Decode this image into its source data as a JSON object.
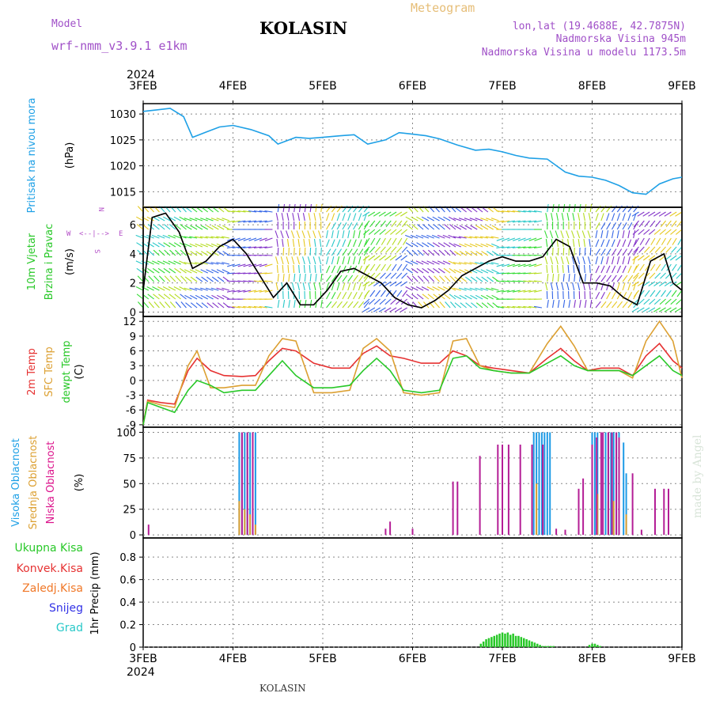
{
  "header": {
    "model_label": "Model",
    "model_name": "wrf-nmm_v3.9.1 e1km",
    "meteogram_label": "Meteogram",
    "station_title": "KOLASIN",
    "coords": "lon,lat (19.4688E, 42.7875N)",
    "altitude": "Nadmorska Visina 945m",
    "model_altitude": "Nadmorska Visina u modelu 1173.5m",
    "year": "2024",
    "footer_station": "KOLASIN",
    "credit": "made by Angel"
  },
  "colors": {
    "pressure": "#1ea0e6",
    "wind_speed": "#000000",
    "temp_2m": "#e63232",
    "sfc_temp": "#dca032",
    "dewpt": "#28c828",
    "cloud_high": "#1e9be6",
    "cloud_mid": "#dca032",
    "cloud_low": "#b41e96",
    "precip_total": "#28c828"
  },
  "panels": {
    "pressure": {
      "labels": [
        "Pritisak na nivou mora"
      ],
      "unit": "(hPa)",
      "label_colors": [
        "#1ea0e6"
      ]
    },
    "wind": {
      "labels": [
        "10m Vjetar",
        "Brzina i Pravac"
      ],
      "unit": "(m/s)",
      "label_colors": [
        "#28c828",
        "#28c828"
      ],
      "compass": {
        "N": "N",
        "W": "W",
        "E": "E",
        "S": "S",
        "arrows": "<--|-->"
      }
    },
    "temp": {
      "labels": [
        "2m Temp",
        "SFC Temp",
        "dewpt Temp"
      ],
      "unit": "(C)",
      "label_colors": [
        "#e63232",
        "#dca032",
        "#28c828"
      ]
    },
    "cloud": {
      "labels": [
        "Visoka Oblacnost",
        "Srednja Oblacnost",
        "Niska Oblacnost"
      ],
      "unit": "(%)",
      "label_colors": [
        "#1ea0e6",
        "#dca032",
        "#dc148c"
      ]
    },
    "precip": {
      "labels": [
        "Ukupna Kisa",
        "Konvek.Kisa",
        "Zaledj.Kisa",
        "Snijeg",
        "Grad"
      ],
      "label_colors": [
        "#28c828",
        "#e63232",
        "#f07828",
        "#3232e6",
        "#28c8c8"
      ],
      "unit": "1hr Precip (mm)"
    }
  },
  "chart_data": [
    {
      "type": "line",
      "panel": "pressure",
      "x_ticks": [
        "3FEB",
        "4FEB",
        "5FEB",
        "6FEB",
        "7FEB",
        "8FEB",
        "9FEB"
      ],
      "ylabel": "(hPa)",
      "y_ticks": [
        1015,
        1020,
        1025,
        1030
      ],
      "ylim": [
        1012,
        1032
      ],
      "grid": true,
      "series": [
        {
          "name": "Pritisak na nivou mora",
          "x": [
            0,
            0.15,
            0.3,
            0.45,
            0.55,
            0.7,
            0.85,
            1.0,
            1.2,
            1.4,
            1.5,
            1.7,
            1.85,
            2.0,
            2.2,
            2.35,
            2.5,
            2.7,
            2.85,
            3.0,
            3.15,
            3.3,
            3.5,
            3.7,
            3.85,
            4.0,
            4.15,
            4.3,
            4.5,
            4.7,
            4.85,
            5.0,
            5.15,
            5.3,
            5.45,
            5.6,
            5.75,
            5.9,
            6.0
          ],
          "y": [
            1030.5,
            1030.8,
            1031.1,
            1029.5,
            1025.5,
            1026.5,
            1027.5,
            1027.8,
            1027.0,
            1025.8,
            1024.2,
            1025.5,
            1025.3,
            1025.5,
            1025.8,
            1026.0,
            1024.2,
            1025.0,
            1026.4,
            1026.1,
            1025.8,
            1025.2,
            1024.0,
            1023.0,
            1023.2,
            1022.7,
            1022.0,
            1021.5,
            1021.3,
            1018.8,
            1018.0,
            1017.8,
            1017.2,
            1016.2,
            1014.8,
            1014.5,
            1016.5,
            1017.5,
            1017.8
          ]
        }
      ]
    },
    {
      "type": "line",
      "panel": "wind",
      "ylabel": "(m/s)",
      "y_ticks": [
        0,
        2,
        4,
        6
      ],
      "ylim": [
        -0.3,
        7.2
      ],
      "grid": true,
      "series": [
        {
          "name": "wind speed",
          "x": [
            0,
            0.1,
            0.25,
            0.4,
            0.55,
            0.7,
            0.85,
            1.0,
            1.15,
            1.3,
            1.45,
            1.6,
            1.75,
            1.9,
            2.05,
            2.2,
            2.35,
            2.5,
            2.65,
            2.8,
            2.95,
            3.1,
            3.25,
            3.4,
            3.55,
            3.7,
            3.85,
            4.0,
            4.15,
            4.3,
            4.45,
            4.6,
            4.75,
            4.9,
            5.05,
            5.2,
            5.35,
            5.5,
            5.65,
            5.8,
            5.9,
            6.0
          ],
          "y": [
            1.5,
            6.5,
            6.8,
            5.5,
            3.0,
            3.5,
            4.5,
            5.0,
            4.0,
            2.5,
            1.0,
            2.0,
            0.5,
            0.5,
            1.5,
            2.8,
            3.0,
            2.5,
            2.0,
            1.0,
            0.5,
            0.3,
            0.8,
            1.5,
            2.5,
            3.0,
            3.5,
            3.8,
            3.5,
            3.5,
            3.8,
            5.0,
            4.5,
            2.0,
            2.0,
            1.8,
            1.0,
            0.5,
            3.5,
            4.0,
            2.0,
            1.5
          ]
        }
      ]
    },
    {
      "type": "line",
      "panel": "temp",
      "ylabel": "(C)",
      "y_ticks": [
        -9,
        -6,
        -3,
        0,
        3,
        6,
        9,
        12
      ],
      "ylim": [
        -9.5,
        13
      ],
      "grid": true,
      "series": [
        {
          "name": "2m Temp",
          "x": [
            0,
            0.05,
            0.2,
            0.35,
            0.5,
            0.6,
            0.75,
            0.9,
            1.1,
            1.25,
            1.4,
            1.55,
            1.7,
            1.9,
            2.1,
            2.3,
            2.45,
            2.6,
            2.75,
            2.9,
            3.1,
            3.3,
            3.45,
            3.6,
            3.75,
            3.9,
            4.1,
            4.3,
            4.5,
            4.65,
            4.8,
            4.95,
            5.1,
            5.3,
            5.45,
            5.6,
            5.75,
            5.9,
            6.0
          ],
          "y": [
            -9,
            -4.0,
            -4.5,
            -4.8,
            2.0,
            4.5,
            2.0,
            1.0,
            0.8,
            1.0,
            4.0,
            6.5,
            6.0,
            3.5,
            2.5,
            2.5,
            5.5,
            7.0,
            5.0,
            4.5,
            3.5,
            3.5,
            6.0,
            5.0,
            3.0,
            2.5,
            2.0,
            1.5,
            4.5,
            6.5,
            4.0,
            2.0,
            2.5,
            2.5,
            1.0,
            5.0,
            7.5,
            4.0,
            2.5
          ]
        },
        {
          "name": "SFC Temp",
          "x": [
            0,
            0.05,
            0.2,
            0.35,
            0.5,
            0.6,
            0.75,
            0.9,
            1.1,
            1.25,
            1.4,
            1.55,
            1.7,
            1.9,
            2.1,
            2.3,
            2.45,
            2.6,
            2.75,
            2.9,
            3.1,
            3.3,
            3.45,
            3.6,
            3.75,
            3.9,
            4.1,
            4.3,
            4.5,
            4.65,
            4.8,
            4.95,
            5.1,
            5.3,
            5.45,
            5.6,
            5.75,
            5.9,
            6.0
          ],
          "y": [
            -9,
            -4.2,
            -5.0,
            -5.5,
            3.0,
            6.0,
            -1.5,
            -1.5,
            -1.0,
            -1.0,
            5.0,
            8.5,
            8.0,
            -2.5,
            -2.5,
            -2.0,
            6.5,
            8.5,
            6.0,
            -2.5,
            -3.0,
            -2.5,
            8.0,
            8.5,
            3.0,
            2.0,
            1.5,
            1.5,
            7.5,
            11.0,
            7.0,
            2.0,
            2.0,
            2.0,
            0.5,
            8.0,
            12.0,
            8.0,
            0.5
          ]
        },
        {
          "name": "dewpt Temp",
          "x": [
            0,
            0.05,
            0.2,
            0.35,
            0.5,
            0.6,
            0.75,
            0.9,
            1.1,
            1.25,
            1.4,
            1.55,
            1.7,
            1.9,
            2.1,
            2.3,
            2.45,
            2.6,
            2.75,
            2.9,
            3.1,
            3.3,
            3.45,
            3.6,
            3.75,
            3.9,
            4.1,
            4.3,
            4.5,
            4.65,
            4.8,
            4.95,
            5.1,
            5.3,
            5.45,
            5.6,
            5.75,
            5.9,
            6.0
          ],
          "y": [
            -9,
            -4.5,
            -5.5,
            -6.5,
            -2.0,
            0.0,
            -1.0,
            -2.5,
            -2.0,
            -2.0,
            1.0,
            4.0,
            1.0,
            -1.5,
            -1.5,
            -1.0,
            2.0,
            4.5,
            2.0,
            -2.0,
            -2.5,
            -2.0,
            4.5,
            5.0,
            2.5,
            2.0,
            1.5,
            1.5,
            3.5,
            5.0,
            3.0,
            2.0,
            2.0,
            2.0,
            1.0,
            3.0,
            5.0,
            2.0,
            1.0
          ]
        }
      ]
    },
    {
      "type": "bar",
      "panel": "cloud",
      "ylabel": "(%)",
      "y_ticks": [
        0,
        25,
        50,
        75,
        100
      ],
      "ylim": [
        -3,
        105
      ],
      "grid": true,
      "series": [
        {
          "name": "Visoka Oblacnost",
          "x": [
            1.07,
            1.1,
            1.13,
            1.16,
            1.19,
            1.22,
            1.25,
            4.35,
            4.38,
            4.41,
            4.44,
            4.47,
            4.5,
            4.53,
            5.85,
            5.88,
            5.91,
            5.94,
            5.97,
            6.0,
            5.0,
            5.03,
            5.06,
            5.15,
            5.18,
            5.21,
            5.24,
            5.27,
            5.3,
            5.35,
            5.38
          ],
          "y": [
            100,
            100,
            100,
            100,
            100,
            100,
            100,
            100,
            100,
            100,
            100,
            100,
            100,
            100,
            0,
            0,
            0,
            0,
            0,
            0,
            100,
            100,
            100,
            100,
            100,
            100,
            100,
            100,
            100,
            90,
            60
          ]
        },
        {
          "name": "Srednja Oblacnost",
          "x": [
            1.07,
            1.13,
            1.19,
            1.25,
            4.38,
            5.0,
            5.06,
            5.18,
            5.24,
            5.3,
            5.38
          ],
          "y": [
            33,
            25,
            20,
            10,
            50,
            35,
            40,
            33,
            33,
            30,
            20
          ]
        },
        {
          "name": "Niska Oblacnost",
          "x": [
            0.06,
            1.1,
            1.16,
            1.22,
            2.7,
            2.75,
            3.0,
            3.45,
            3.5,
            3.75,
            3.95,
            4.0,
            4.07,
            4.2,
            4.33,
            4.45,
            4.6,
            4.7,
            4.85,
            4.9,
            5.0,
            5.05,
            5.1,
            5.12,
            5.18,
            5.22,
            5.27,
            5.3,
            5.45,
            5.55,
            5.7,
            5.8,
            5.85
          ],
          "y": [
            10,
            100,
            100,
            100,
            6,
            13,
            6,
            52,
            52,
            77,
            88,
            88,
            88,
            88,
            88,
            88,
            6,
            5,
            45,
            55,
            88,
            95,
            100,
            100,
            100,
            100,
            100,
            95,
            60,
            5,
            45,
            45,
            45
          ]
        }
      ]
    },
    {
      "type": "bar",
      "panel": "precip",
      "x_ticks": [
        "3FEB",
        "4FEB",
        "5FEB",
        "6FEB",
        "7FEB",
        "8FEB",
        "9FEB"
      ],
      "ylabel": "1hr Precip (mm)",
      "y_ticks": [
        0,
        0.2,
        0.4,
        0.6,
        0.8
      ],
      "ylim": [
        0,
        0.97
      ],
      "grid": true,
      "series": [
        {
          "name": "Ukupna Kisa",
          "x": [
            3.76,
            3.79,
            3.82,
            3.85,
            3.88,
            3.91,
            3.94,
            3.97,
            4.0,
            4.03,
            4.06,
            4.09,
            4.12,
            4.15,
            4.18,
            4.21,
            4.24,
            4.27,
            4.3,
            4.33,
            4.36,
            4.39,
            4.42,
            4.45,
            4.48,
            4.51,
            4.54,
            4.57,
            4.97,
            5.0,
            5.03,
            5.06,
            5.09
          ],
          "y": [
            0.03,
            0.05,
            0.07,
            0.08,
            0.09,
            0.1,
            0.11,
            0.12,
            0.13,
            0.12,
            0.13,
            0.11,
            0.12,
            0.1,
            0.1,
            0.09,
            0.08,
            0.07,
            0.06,
            0.05,
            0.04,
            0.03,
            0.02,
            0.01,
            0.01,
            0.01,
            0.01,
            0.01,
            0.02,
            0.03,
            0.03,
            0.02,
            0.01
          ]
        }
      ]
    }
  ]
}
